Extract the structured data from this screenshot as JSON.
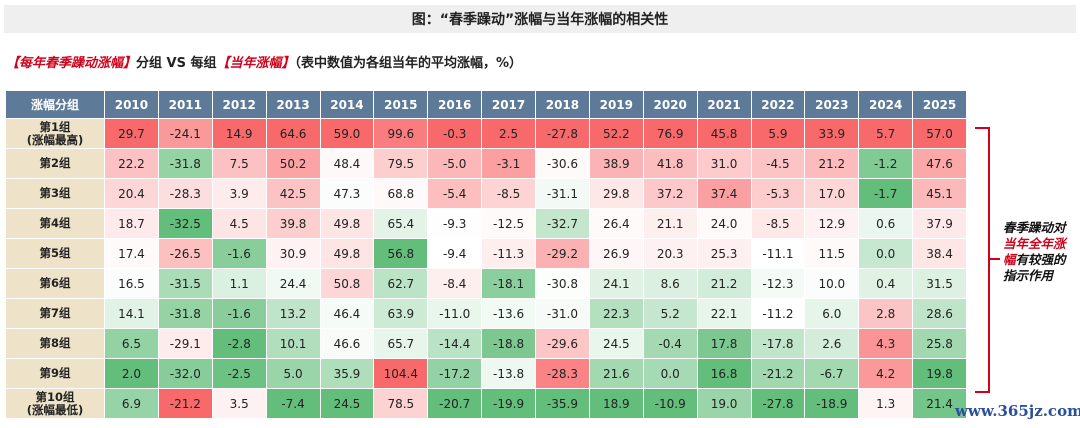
{
  "title": "图：“春季躁动”涨幅与当年涨幅的相关性",
  "subtitle": {
    "part1": "【每年春季躁动涨幅】",
    "part2": "分组 VS 每组",
    "part3": "【当年涨幅】",
    "part4": "（表中数值为各组当年的平均涨幅，%）"
  },
  "annotation": {
    "line1": "春季躁动对",
    "red": "当年全年涨幅",
    "line2": "有较强的指示作用"
  },
  "watermark": "www.365jz.com",
  "colors": {
    "header": "#5d7a98",
    "group_cell": "#eee3c9",
    "high": "#f8696b",
    "low": "#63be7b",
    "mid": "#ffffff",
    "accent": "#d0021b"
  },
  "chart_data": {
    "type": "heatmap",
    "title": "图：“春季躁动”涨幅与当年涨幅的相关性",
    "corner_label": "涨幅分组",
    "columns": [
      "2010",
      "2011",
      "2012",
      "2013",
      "2014",
      "2015",
      "2016",
      "2017",
      "2018",
      "2019",
      "2020",
      "2021",
      "2022",
      "2023",
      "2024",
      "2025"
    ],
    "rows": [
      {
        "label": "第1组",
        "sub": "(涨幅最高)",
        "values": [
          29.7,
          -24.1,
          14.9,
          64.6,
          59.0,
          99.6,
          -0.3,
          2.5,
          -27.8,
          52.2,
          76.9,
          45.8,
          5.9,
          33.9,
          5.7,
          57.0
        ]
      },
      {
        "label": "第2组",
        "sub": "",
        "values": [
          22.2,
          -31.8,
          7.5,
          50.2,
          48.4,
          79.5,
          -5.0,
          -3.1,
          -30.6,
          38.9,
          41.8,
          31.0,
          -4.5,
          21.2,
          -1.2,
          47.6
        ]
      },
      {
        "label": "第3组",
        "sub": "",
        "values": [
          20.4,
          -28.3,
          3.9,
          42.5,
          47.3,
          68.8,
          -5.4,
          -8.5,
          -31.1,
          29.8,
          37.2,
          37.4,
          -5.3,
          17.0,
          -1.7,
          45.1
        ]
      },
      {
        "label": "第4组",
        "sub": "",
        "values": [
          18.7,
          -32.5,
          4.5,
          39.8,
          49.8,
          65.4,
          -9.3,
          -12.5,
          -32.7,
          26.4,
          21.1,
          24.0,
          -8.5,
          12.9,
          0.6,
          37.9
        ]
      },
      {
        "label": "第5组",
        "sub": "",
        "values": [
          17.4,
          -26.5,
          -1.6,
          30.9,
          49.8,
          56.8,
          -9.4,
          -11.3,
          -29.2,
          26.9,
          20.3,
          25.3,
          -11.1,
          11.5,
          0.0,
          38.4
        ]
      },
      {
        "label": "第6组",
        "sub": "",
        "values": [
          16.5,
          -31.5,
          1.1,
          24.4,
          50.8,
          62.7,
          -8.4,
          -18.1,
          -30.8,
          24.1,
          8.6,
          21.2,
          -12.3,
          10.0,
          0.4,
          31.5
        ]
      },
      {
        "label": "第7组",
        "sub": "",
        "values": [
          14.1,
          -31.8,
          -1.6,
          13.2,
          46.4,
          63.9,
          -11.0,
          -13.6,
          -31.0,
          22.3,
          5.2,
          22.1,
          -11.2,
          6.0,
          2.8,
          28.6
        ]
      },
      {
        "label": "第8组",
        "sub": "",
        "values": [
          6.5,
          -29.1,
          -2.8,
          10.1,
          46.6,
          65.7,
          -14.4,
          -18.8,
          -29.6,
          24.5,
          -0.4,
          17.8,
          -17.8,
          2.6,
          4.3,
          25.8
        ]
      },
      {
        "label": "第9组",
        "sub": "",
        "values": [
          2.0,
          -32.0,
          -2.5,
          5.0,
          35.9,
          104.4,
          -17.2,
          -13.8,
          -28.3,
          21.6,
          0.0,
          16.8,
          -21.2,
          -6.7,
          4.2,
          19.8
        ]
      },
      {
        "label": "第10组",
        "sub": "(涨幅最低)",
        "values": [
          6.9,
          -21.2,
          3.5,
          -7.4,
          24.5,
          78.5,
          -20.7,
          -19.9,
          -35.9,
          18.9,
          -10.9,
          19.0,
          -27.8,
          -18.9,
          1.3,
          21.4
        ]
      }
    ],
    "color_scale": "per-column, green (low) → white (middle) → red (high)"
  }
}
